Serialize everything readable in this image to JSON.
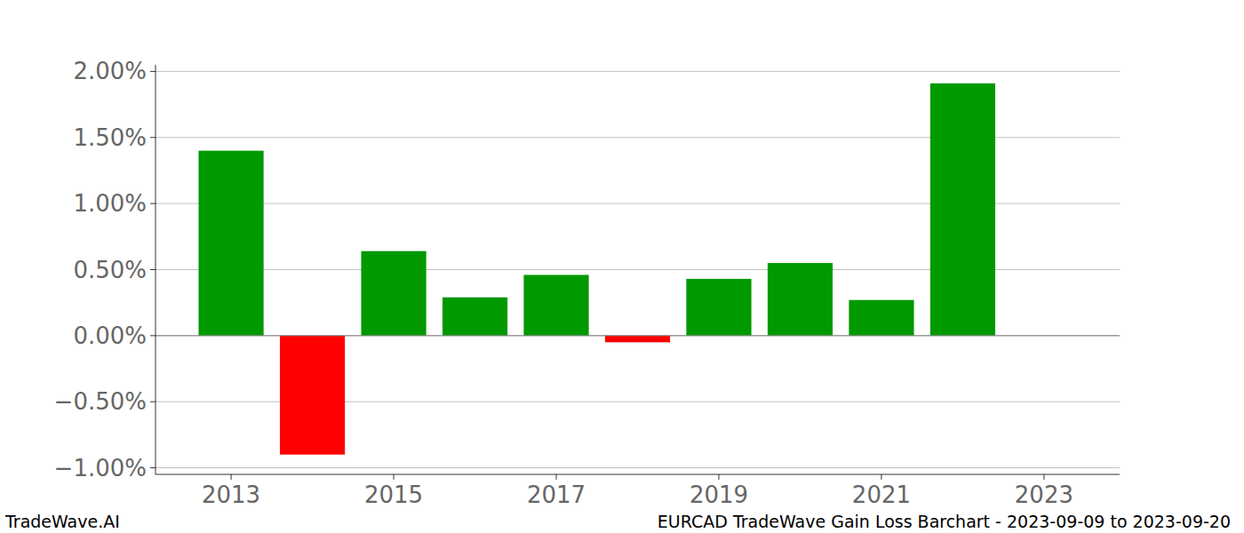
{
  "chart_data": {
    "type": "bar",
    "title": "EURCAD TradeWave Gain Loss Barchart - 2023-09-09 to 2023-09-20",
    "annotations": [
      "TradeWave.AI"
    ],
    "x": [
      2013,
      2014,
      2015,
      2016,
      2017,
      2018,
      2019,
      2020,
      2021,
      2022
    ],
    "values": [
      1.4,
      -0.9,
      0.64,
      0.29,
      0.46,
      -0.05,
      0.43,
      0.55,
      0.27,
      1.91
    ],
    "colors": [
      "#009900",
      "#ff0000",
      "#009900",
      "#009900",
      "#009900",
      "#ff0000",
      "#009900",
      "#009900",
      "#009900",
      "#009900"
    ],
    "xlim": [
      2012.07,
      2023.93
    ],
    "xticks": [
      2013,
      2015,
      2017,
      2019,
      2021,
      2023
    ],
    "ylim": [
      -1.05,
      2.05
    ],
    "yticks": [
      {
        "value": -1,
        "label": "−1.00%"
      },
      {
        "value": -0.5,
        "label": "−0.50%"
      },
      {
        "value": 0,
        "label": "0.00%"
      },
      {
        "value": 0.5,
        "label": "0.50%"
      },
      {
        "value": 1,
        "label": "1.00%"
      },
      {
        "value": 1.5,
        "label": "1.50%"
      },
      {
        "value": 2,
        "label": "2.00%"
      }
    ],
    "grid": true
  }
}
